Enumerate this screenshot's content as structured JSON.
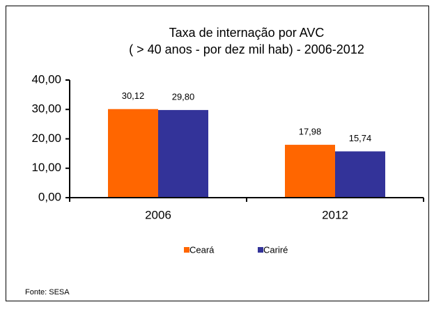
{
  "chart_data": {
    "type": "bar",
    "title": "Taxa de internação por AVC",
    "subtitle": "( > 40 anos - por dez mil hab) - 2006-2012",
    "categories": [
      "2006",
      "2012"
    ],
    "series": [
      {
        "name": "Ceará",
        "color": "#ff6600",
        "values": [
          30.12,
          17.98
        ],
        "value_labels": [
          "30,12",
          "17,98"
        ]
      },
      {
        "name": "Cariré",
        "color": "#333399",
        "values": [
          29.8,
          15.74
        ],
        "value_labels": [
          "29,80",
          "15,74"
        ]
      }
    ],
    "ylim": [
      0,
      40
    ],
    "yticks": [
      {
        "value": 0,
        "label": "0,00"
      },
      {
        "value": 10,
        "label": "10,00"
      },
      {
        "value": 20,
        "label": "20,00"
      },
      {
        "value": 30,
        "label": "30,00"
      },
      {
        "value": 40,
        "label": "40,00"
      }
    ],
    "grid": false,
    "legend": "bottom",
    "source": "Fonte: SESA"
  }
}
